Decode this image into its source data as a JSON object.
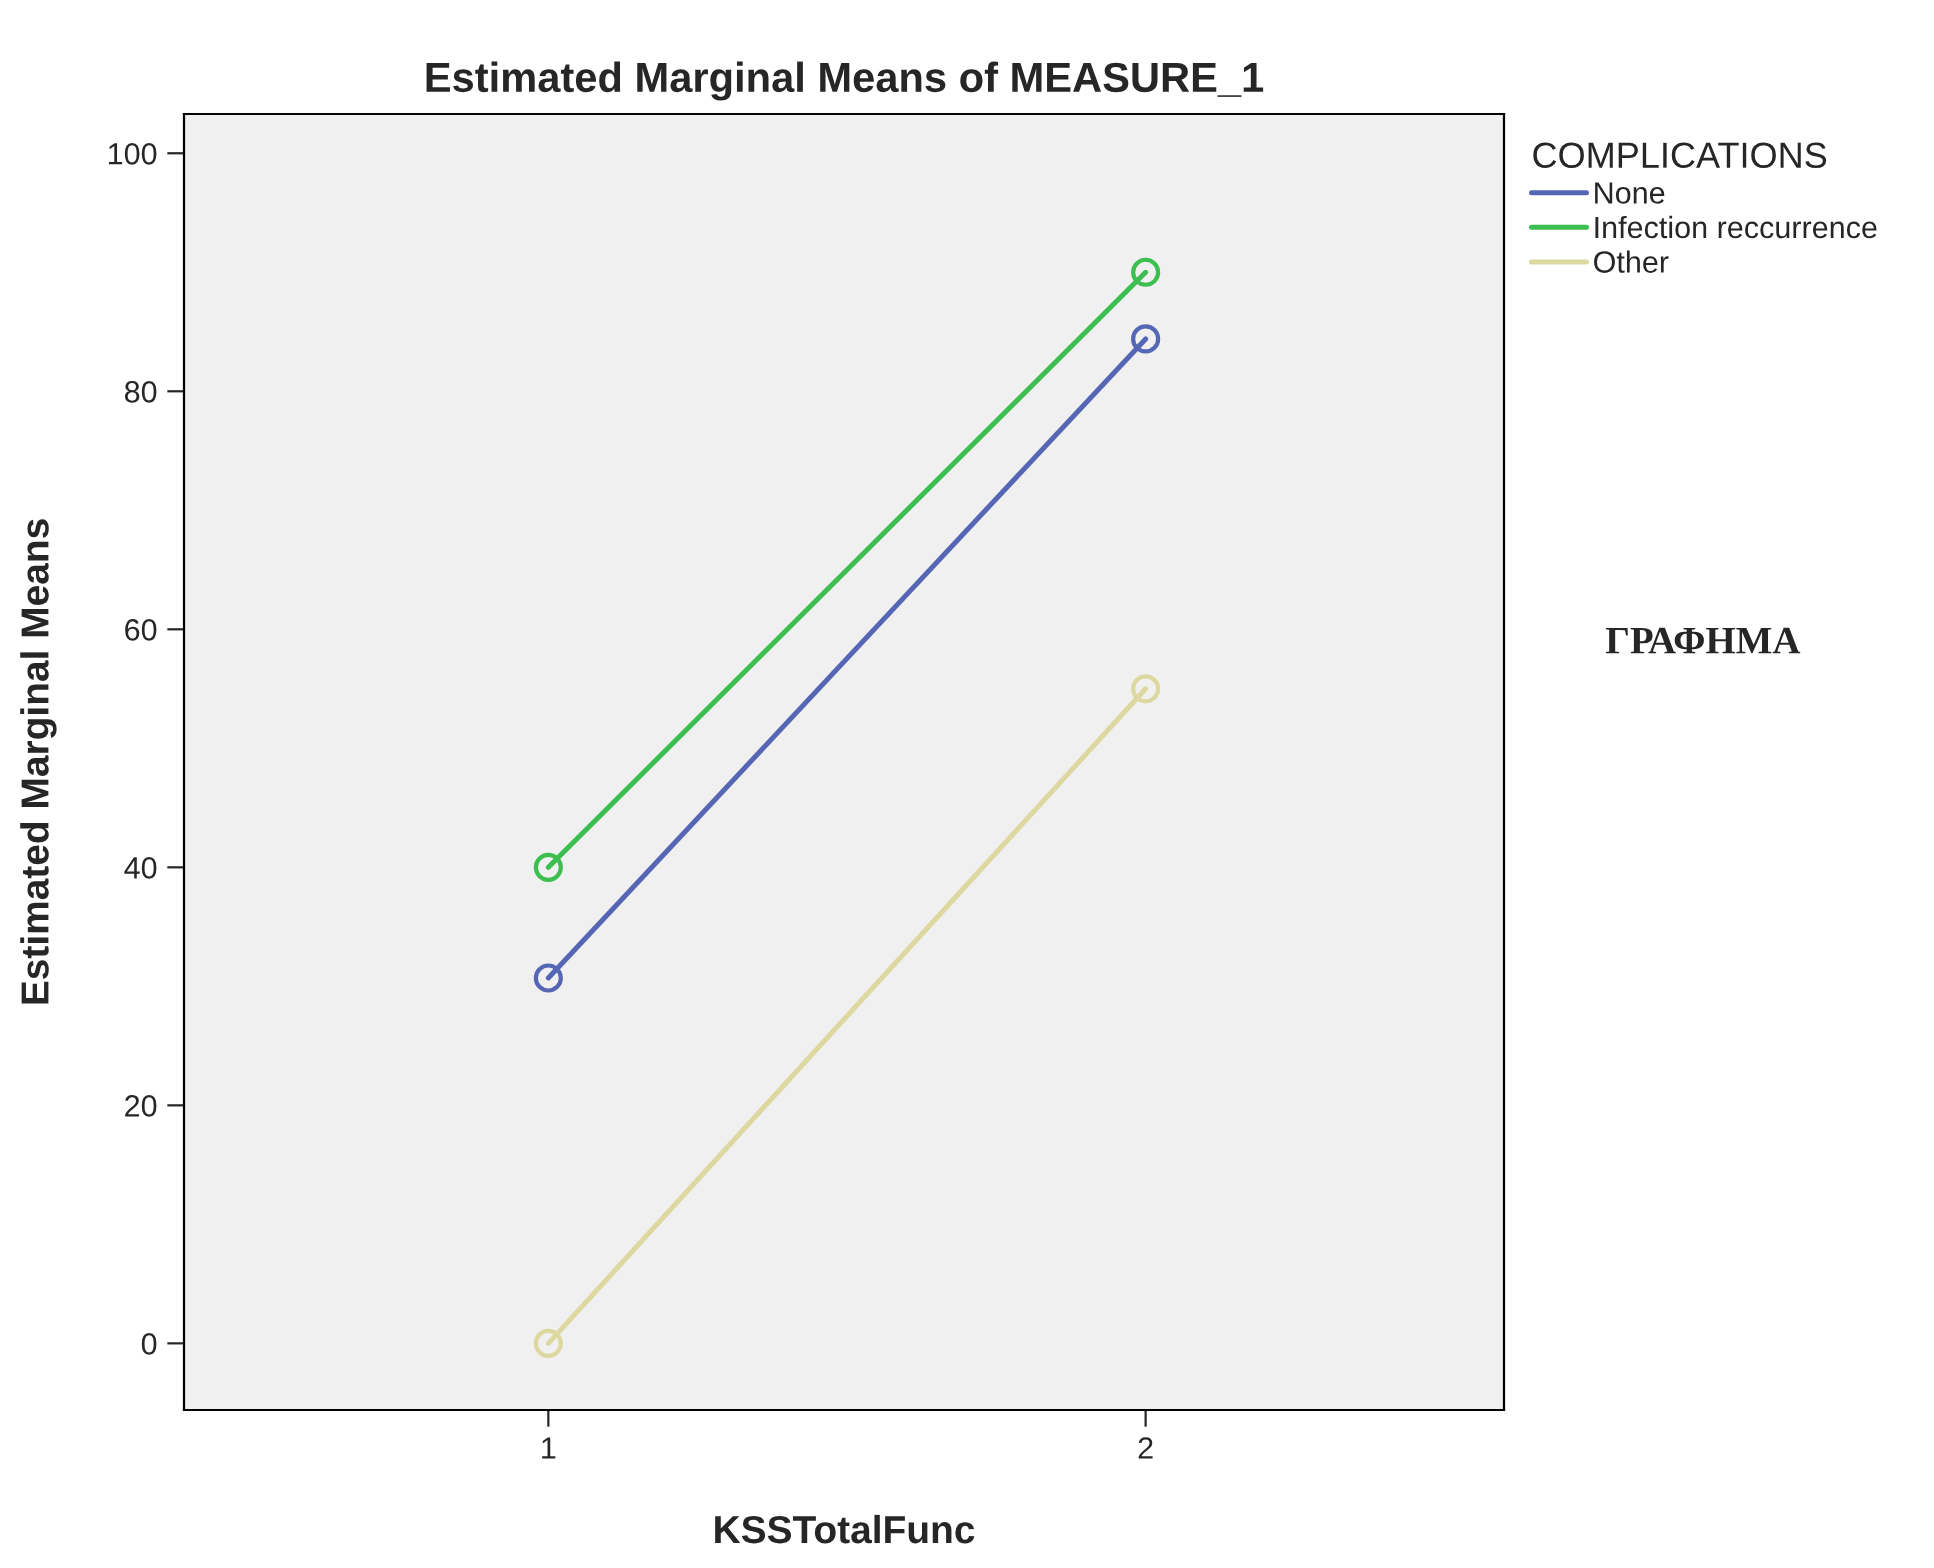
{
  "chart_data": {
    "type": "line",
    "title": "Estimated Marginal Means of MEASURE_1",
    "xlabel": "KSSTotalFunc",
    "ylabel": "Estimated Marginal Means",
    "legend_title": "COMPLICATIONS",
    "x": [
      1,
      2
    ],
    "xlim": [
      0.39,
      2.6
    ],
    "xticks": [
      1,
      2
    ],
    "ylim": [
      -5.6,
      103.3
    ],
    "yticks": [
      0,
      20,
      40,
      60,
      80,
      100
    ],
    "series": [
      {
        "name": "None",
        "color": "#5566b4",
        "values": [
          30.7,
          84.4
        ]
      },
      {
        "name": "Infection reccurrence",
        "color": "#3cbf50",
        "values": [
          40.0,
          90.0
        ]
      },
      {
        "name": "Other",
        "color": "#ddd8a0",
        "values": [
          0.0,
          55.0
        ]
      }
    ],
    "marker": "circle",
    "grid": false,
    "legend": "top right",
    "annotations": [
      "ΓΡΑΦΗΜΑ"
    ]
  }
}
